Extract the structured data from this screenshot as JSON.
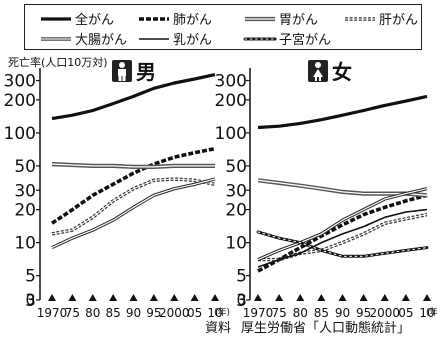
{
  "legend": [
    {
      "name": "全がん",
      "style": "thick-solid"
    },
    {
      "name": "肺がん",
      "style": "thick-dashed"
    },
    {
      "name": "胃がん",
      "style": "double-gray"
    },
    {
      "name": "肝がん",
      "style": "dotted-square"
    },
    {
      "name": "大腸がん",
      "style": "double-thin"
    },
    {
      "name": "乳がん",
      "style": "thin-solid"
    },
    {
      "name": "子宮がん",
      "style": "circle-chain"
    }
  ],
  "y_axis_title": "死亡率(人口10万対)",
  "source": {
    "prefix": "資料",
    "text": "厚生労働省「人口動態統計」"
  },
  "icons": {
    "male": "male-person-icon",
    "female": "female-person-icon"
  },
  "chart_data": [
    {
      "type": "line",
      "title": "男",
      "xlabel": "(年)",
      "ylabel": "死亡率(人口10万対)",
      "yscale": "log",
      "ylim": [
        3,
        330
      ],
      "y_ticks": [
        300,
        200,
        100,
        50,
        30,
        20,
        10,
        5,
        3
      ],
      "x_tick_labels": [
        "1970",
        "75",
        "80",
        "85",
        "90",
        "95",
        "2000",
        "05",
        "10"
      ],
      "x_unit": "(年)",
      "x": [
        1970,
        1975,
        1980,
        1985,
        1990,
        1995,
        2000,
        2005,
        2010
      ],
      "series": [
        {
          "name": "全がん",
          "values": [
            135,
            145,
            160,
            185,
            215,
            255,
            285,
            310,
            340
          ]
        },
        {
          "name": "肺がん",
          "values": [
            15,
            20,
            27,
            34,
            43,
            52,
            60,
            66,
            72
          ]
        },
        {
          "name": "胃がん",
          "values": [
            52,
            51,
            50,
            50,
            49,
            49,
            50,
            50,
            50
          ]
        },
        {
          "name": "肝がん",
          "values": [
            12,
            13,
            17,
            24,
            31,
            37,
            38,
            37,
            34
          ]
        },
        {
          "name": "大腸がん",
          "values": [
            9,
            11,
            13,
            16,
            21,
            27,
            31,
            34,
            38
          ]
        }
      ]
    },
    {
      "type": "line",
      "title": "女",
      "xlabel": "(年)",
      "ylabel": "死亡率(人口10万対)",
      "yscale": "log",
      "ylim": [
        3,
        330
      ],
      "y_ticks": [
        300,
        200,
        100,
        50,
        30,
        20,
        10,
        5,
        3
      ],
      "x_tick_labels": [
        "1970",
        "75",
        "80",
        "85",
        "90",
        "95",
        "2000",
        "05",
        "10"
      ],
      "x_unit": "(年)",
      "x": [
        1970,
        1975,
        1980,
        1985,
        1990,
        1995,
        2000,
        2005,
        2010
      ],
      "series": [
        {
          "name": "全がん",
          "values": [
            112,
            115,
            122,
            132,
            145,
            160,
            178,
            195,
            215
          ]
        },
        {
          "name": "肺がん",
          "values": [
            5.5,
            7,
            9,
            11.5,
            14.5,
            18,
            21,
            24,
            27
          ]
        },
        {
          "name": "胃がん",
          "values": [
            37,
            35,
            33,
            31,
            29,
            28,
            28,
            28,
            27
          ]
        },
        {
          "name": "肝がん",
          "values": [
            7,
            7,
            8,
            8.5,
            10,
            12,
            15,
            16.5,
            18
          ]
        },
        {
          "name": "大腸がん",
          "values": [
            7,
            8.5,
            10,
            12,
            16,
            20,
            25,
            28,
            31
          ]
        },
        {
          "name": "乳がん",
          "values": [
            6,
            7,
            8,
            10,
            12,
            14,
            17,
            19,
            20
          ]
        },
        {
          "name": "子宮がん",
          "values": [
            12.5,
            11,
            10,
            8.5,
            7.5,
            7.5,
            8,
            8.5,
            9
          ]
        }
      ]
    }
  ]
}
